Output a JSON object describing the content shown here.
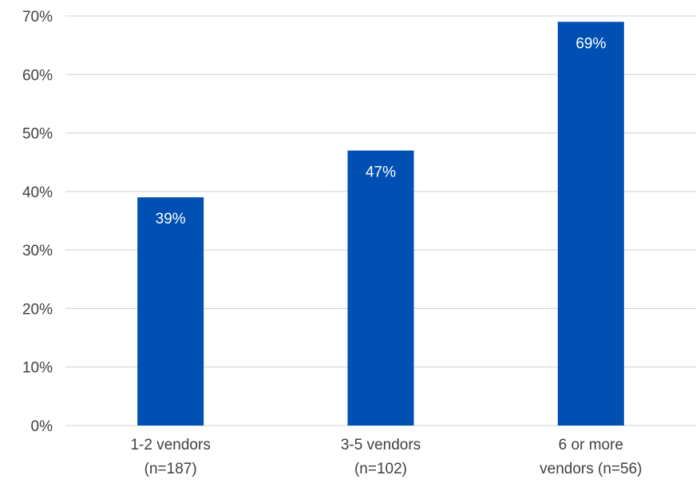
{
  "chart_data": {
    "type": "bar",
    "title": "",
    "xlabel": "",
    "ylabel": "",
    "ylim": [
      0,
      70
    ],
    "y_ticks": [
      "0%",
      "10%",
      "20%",
      "30%",
      "40%",
      "50%",
      "60%",
      "70%"
    ],
    "categories": [
      [
        "1-2 vendors",
        "(n=187)"
      ],
      [
        "3-5 vendors",
        "(n=102)"
      ],
      [
        "6 or more",
        "vendors (n=56)"
      ]
    ],
    "values": [
      39,
      47,
      69
    ],
    "value_labels": [
      "39%",
      "47%",
      "69%"
    ],
    "grid": true,
    "legend": "none",
    "bar_color": "#0050b4",
    "grid_color": "#d0d0d0"
  }
}
